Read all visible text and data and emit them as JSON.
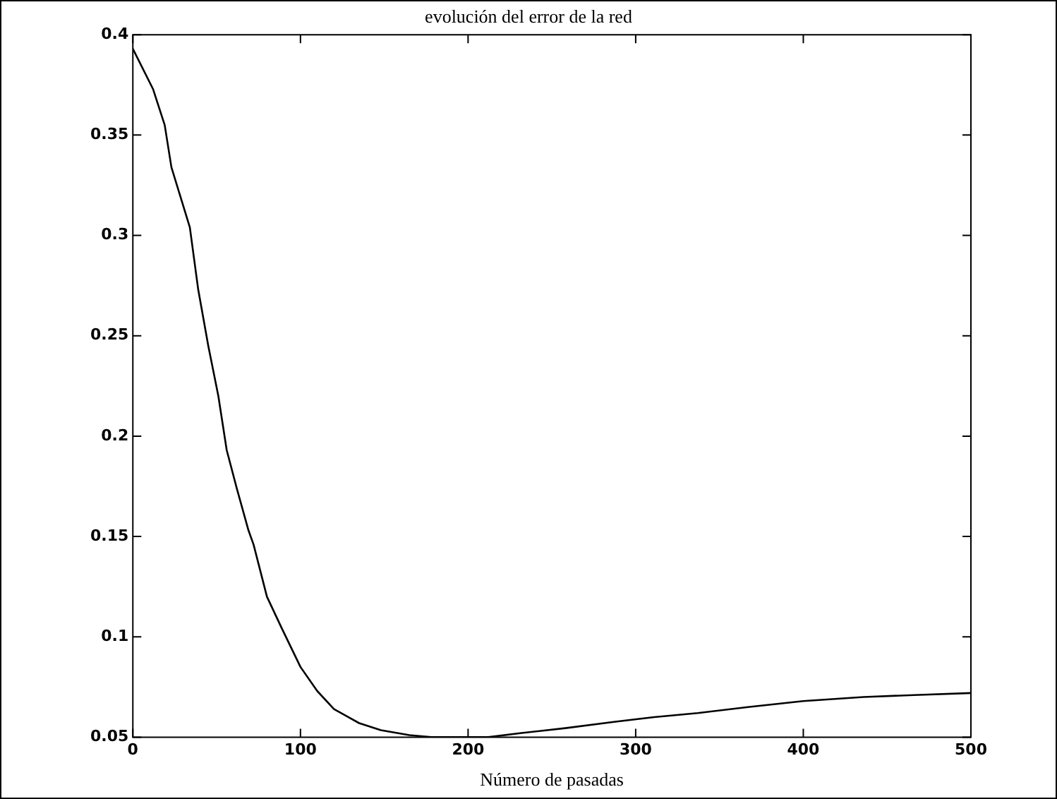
{
  "chart_data": {
    "type": "line",
    "title": "evolución del error de la red",
    "xlabel": "Número de pasadas",
    "x": [
      0,
      12,
      19,
      23,
      34,
      39,
      45,
      51,
      56,
      62,
      69,
      72,
      80,
      89,
      100,
      110,
      120,
      135,
      148,
      165,
      178,
      212,
      231,
      258,
      287,
      311,
      337,
      367,
      400,
      436,
      466,
      500
    ],
    "series": [
      {
        "color": "#000000",
        "values": [
          0.393,
          0.373,
          0.355,
          0.334,
          0.304,
          0.273,
          0.245,
          0.22,
          0.193,
          0.174,
          0.153,
          0.146,
          0.12,
          0.104,
          0.085,
          0.073,
          0.064,
          0.057,
          0.0535,
          0.051,
          0.05,
          0.05,
          0.052,
          0.0545,
          0.0576,
          0.06,
          0.062,
          0.065,
          0.068,
          0.07,
          0.071,
          0.072
        ]
      }
    ],
    "xlim": [
      0,
      500
    ],
    "xticks": [
      0,
      100,
      200,
      300,
      400,
      500
    ],
    "ylim": [
      0.05,
      0.4
    ],
    "yticks": [
      0.05,
      0.1,
      0.15,
      0.2,
      0.25,
      0.3,
      0.35,
      0.4
    ],
    "legend": false,
    "marker": "none",
    "line_style": "solid"
  }
}
